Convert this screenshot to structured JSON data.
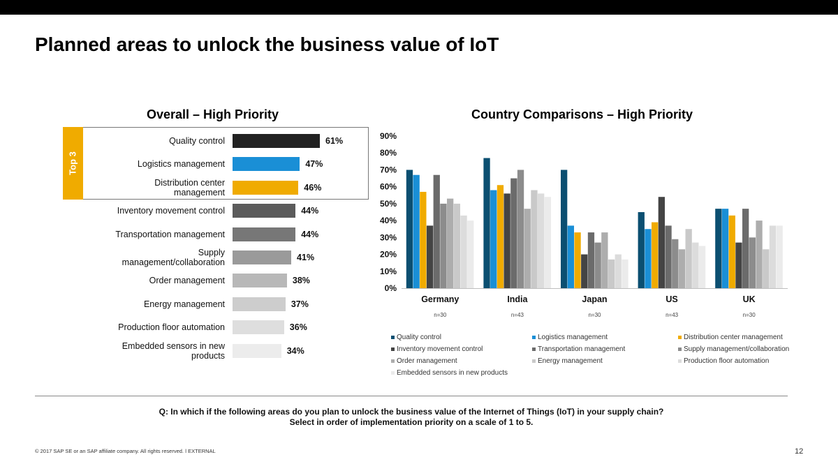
{
  "slide": {
    "title": "Planned areas to unlock the business value of IoT",
    "page_number": "12",
    "footer": "© 2017 SAP SE or an SAP affiliate company. All rights reserved.  ǀ  EXTERNAL",
    "question_line1": "Q: In which if the following areas do you plan to unlock the business value of the Internet of Things (IoT) in your supply chain?",
    "question_line2": "Select in order of implementation priority on a scale of 1 to 5.",
    "top3_label": "Top 3",
    "brand_colors": [
      "#6e4f14",
      "#c88a00",
      "#f0ab00"
    ]
  },
  "chart_data": [
    {
      "type": "bar",
      "orientation": "horizontal",
      "title": "Overall – High Priority",
      "categories": [
        "Quality control",
        "Logistics management",
        "Distribution center management",
        "Inventory movement control",
        "Transportation management",
        "Supply management/collaboration",
        "Order management",
        "Energy management",
        "Production floor automation",
        "Embedded sensors in new products"
      ],
      "label_lines": [
        [
          "Quality control"
        ],
        [
          "Logistics management"
        ],
        [
          "Distribution center",
          "management"
        ],
        [
          "Inventory movement control"
        ],
        [
          "Transportation management"
        ],
        [
          "Supply",
          "management/collaboration"
        ],
        [
          "Order management"
        ],
        [
          "Energy management"
        ],
        [
          "Production floor automation"
        ],
        [
          "Embedded sensors in new",
          "products"
        ]
      ],
      "values": [
        61,
        47,
        46,
        44,
        44,
        41,
        38,
        37,
        36,
        34
      ],
      "value_labels": [
        "61%",
        "47%",
        "46%",
        "44%",
        "44%",
        "41%",
        "38%",
        "37%",
        "36%",
        "34%"
      ],
      "colors": [
        "#222222",
        "#1a8fd6",
        "#f0ab00",
        "#5b5b5b",
        "#777777",
        "#9a9a9a",
        "#b8b8b8",
        "#cdcdcd",
        "#dedede",
        "#ececec"
      ],
      "highlight": "Top 3"
    },
    {
      "type": "bar",
      "title": "Country Comparisons – High Priority",
      "categories": [
        "Germany",
        "India",
        "Japan",
        "US",
        "UK"
      ],
      "sample_sizes": [
        "n=30",
        "n=43",
        "n=30",
        "n=43",
        "n=30"
      ],
      "ylim": [
        0,
        90
      ],
      "yticks": [
        "0%",
        "10%",
        "20%",
        "30%",
        "40%",
        "50%",
        "60%",
        "70%",
        "80%",
        "90%"
      ],
      "legend_position": "bottom",
      "series": [
        {
          "name": "Quality control",
          "color": "#0b4f71",
          "values": [
            70,
            77,
            70,
            45,
            47
          ]
        },
        {
          "name": "Logistics management",
          "color": "#1a8fd6",
          "values": [
            67,
            58,
            37,
            35,
            47
          ]
        },
        {
          "name": "Distribution center management",
          "color": "#f0ab00",
          "values": [
            57,
            61,
            33,
            39,
            43
          ]
        },
        {
          "name": "Inventory movement control",
          "color": "#444444",
          "values": [
            37,
            56,
            20,
            54,
            27
          ]
        },
        {
          "name": "Transportation management",
          "color": "#6b6b6b",
          "values": [
            67,
            65,
            33,
            37,
            47
          ]
        },
        {
          "name": "Supply management/collaboration",
          "color": "#8c8c8c",
          "values": [
            50,
            70,
            27,
            29,
            30
          ]
        },
        {
          "name": "Order management",
          "color": "#adadad",
          "values": [
            53,
            47,
            33,
            23,
            40
          ]
        },
        {
          "name": "Energy management",
          "color": "#c9c9c9",
          "values": [
            50,
            58,
            17,
            35,
            23
          ]
        },
        {
          "name": "Production floor automation",
          "color": "#dcdcdc",
          "values": [
            43,
            56,
            20,
            27,
            37
          ]
        },
        {
          "name": "Embedded sensors in new products",
          "color": "#ebebeb",
          "values": [
            40,
            54,
            17,
            25,
            37
          ]
        }
      ]
    }
  ]
}
